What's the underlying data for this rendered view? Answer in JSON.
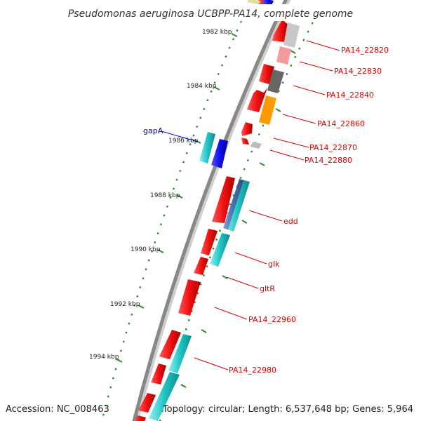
{
  "title": "Pseudomonas aeruginosa UCBPP-PA14, complete genome",
  "footer": {
    "accession": "Accession: NC_008463",
    "summary": "Topology: circular; Length: 6,537,648 bp; Genes: 5,964"
  },
  "colors": {
    "backbone": "#8a8a8a",
    "ticks": "#2e8b2e",
    "forward_gene": "#ee1111",
    "reverse_gene": "#22c4c4",
    "label_red": "#dd0000",
    "label_blue": "#0000cc"
  },
  "kbp_labels": [
    "1982 kbp",
    "1984 kbp",
    "1986 kbp",
    "1988 kbp",
    "1990 kbp",
    "1992 kbp",
    "1994 kbp"
  ],
  "gene_labels": [
    {
      "text": "PA14_22820",
      "color": "red"
    },
    {
      "text": "PA14_22830",
      "color": "red"
    },
    {
      "text": "PA14_22840",
      "color": "red"
    },
    {
      "text": "PA14_22860",
      "color": "red"
    },
    {
      "text": "PA14_22870",
      "color": "red"
    },
    {
      "text": "PA14_22880",
      "color": "red"
    },
    {
      "text": "gapA",
      "color": "blue"
    },
    {
      "text": "edd",
      "color": "red"
    },
    {
      "text": "glk",
      "color": "red"
    },
    {
      "text": "gltR",
      "color": "red"
    },
    {
      "text": "PA14_22960",
      "color": "red"
    },
    {
      "text": "PA14_22980",
      "color": "red"
    }
  ]
}
